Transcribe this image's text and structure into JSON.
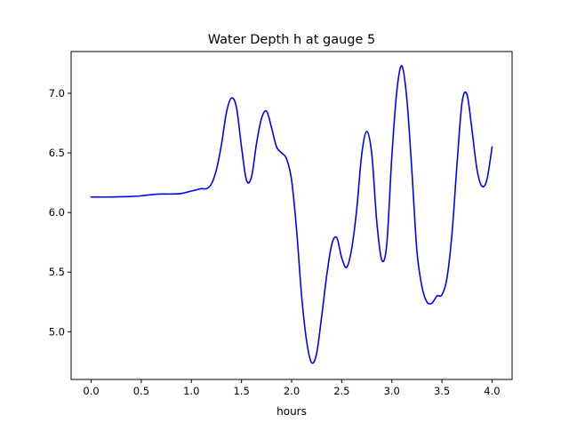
{
  "chart_data": {
    "type": "line",
    "title": "Water Depth h at gauge 5",
    "xlabel": "hours",
    "ylabel": "",
    "xlim": [
      -0.2,
      4.2
    ],
    "ylim": [
      4.6,
      7.35
    ],
    "grid": false,
    "xticks": [
      0.0,
      0.5,
      1.0,
      1.5,
      2.0,
      2.5,
      3.0,
      3.5,
      4.0
    ],
    "xtick_labels": [
      "0.0",
      "0.5",
      "1.0",
      "1.5",
      "2.0",
      "2.5",
      "3.0",
      "3.5",
      "4.0"
    ],
    "yticks": [
      5.0,
      5.5,
      6.0,
      6.5,
      7.0
    ],
    "ytick_labels": [
      "5.0",
      "5.5",
      "6.0",
      "6.5",
      "7.0"
    ],
    "series": [
      {
        "color": "#0000ff",
        "x": [
          0.0,
          0.2,
          0.4,
          0.5,
          0.6,
          0.7,
          0.8,
          0.9,
          1.0,
          1.05,
          1.1,
          1.15,
          1.2,
          1.25,
          1.3,
          1.35,
          1.4,
          1.45,
          1.5,
          1.55,
          1.6,
          1.65,
          1.7,
          1.75,
          1.8,
          1.85,
          1.9,
          1.95,
          2.0,
          2.05,
          2.1,
          2.15,
          2.2,
          2.25,
          2.3,
          2.35,
          2.4,
          2.45,
          2.5,
          2.55,
          2.6,
          2.65,
          2.7,
          2.75,
          2.8,
          2.85,
          2.9,
          2.95,
          3.0,
          3.05,
          3.1,
          3.15,
          3.2,
          3.25,
          3.3,
          3.35,
          3.4,
          3.45,
          3.5,
          3.55,
          3.6,
          3.65,
          3.7,
          3.75,
          3.8,
          3.85,
          3.9,
          3.95,
          4.0
        ],
        "values": [
          6.13,
          6.13,
          6.135,
          6.14,
          6.15,
          6.155,
          6.155,
          6.16,
          6.18,
          6.19,
          6.2,
          6.2,
          6.24,
          6.36,
          6.57,
          6.84,
          6.96,
          6.88,
          6.55,
          6.27,
          6.3,
          6.58,
          6.79,
          6.85,
          6.71,
          6.55,
          6.5,
          6.45,
          6.27,
          5.85,
          5.3,
          4.92,
          4.74,
          4.82,
          5.13,
          5.47,
          5.73,
          5.79,
          5.62,
          5.54,
          5.7,
          6.03,
          6.49,
          6.68,
          6.49,
          5.92,
          5.6,
          5.74,
          6.47,
          7.02,
          7.23,
          6.95,
          6.35,
          5.68,
          5.38,
          5.25,
          5.24,
          5.3,
          5.31,
          5.45,
          5.82,
          6.4,
          6.92,
          6.99,
          6.69,
          6.36,
          6.22,
          6.28,
          6.55
        ]
      }
    ]
  }
}
